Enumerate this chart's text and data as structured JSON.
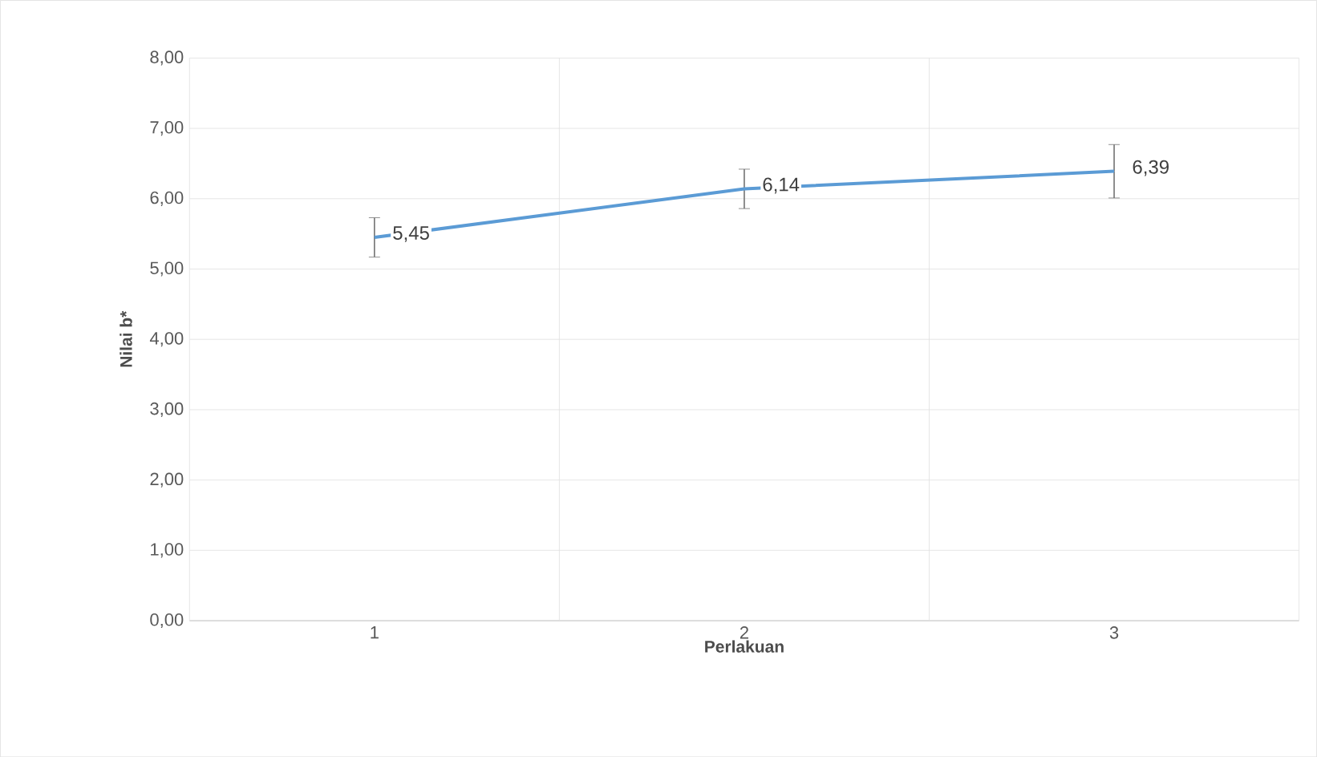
{
  "chart_data": {
    "type": "line",
    "xlabel": "Perlakuan",
    "ylabel": "Nilai b*",
    "categories": [
      "1",
      "2",
      "3"
    ],
    "series": [
      {
        "color": "#5b9bd5",
        "values": [
          5.45,
          6.14,
          6.39
        ],
        "errors": [
          0.28,
          0.28,
          0.38
        ],
        "value_labels": [
          "5,45",
          "6,14",
          "6,39"
        ]
      }
    ],
    "ylim": [
      0,
      8
    ],
    "yticks": [
      {
        "value": 0,
        "label": "0,00"
      },
      {
        "value": 1,
        "label": "1,00"
      },
      {
        "value": 2,
        "label": "2,00"
      },
      {
        "value": 3,
        "label": "3,00"
      },
      {
        "value": 4,
        "label": "4,00"
      },
      {
        "value": 5,
        "label": "5,00"
      },
      {
        "value": 6,
        "label": "6,00"
      },
      {
        "value": 7,
        "label": "7,00"
      },
      {
        "value": 8,
        "label": "8,00"
      }
    ],
    "grid": true,
    "marker": "none",
    "line_style": "solid"
  }
}
